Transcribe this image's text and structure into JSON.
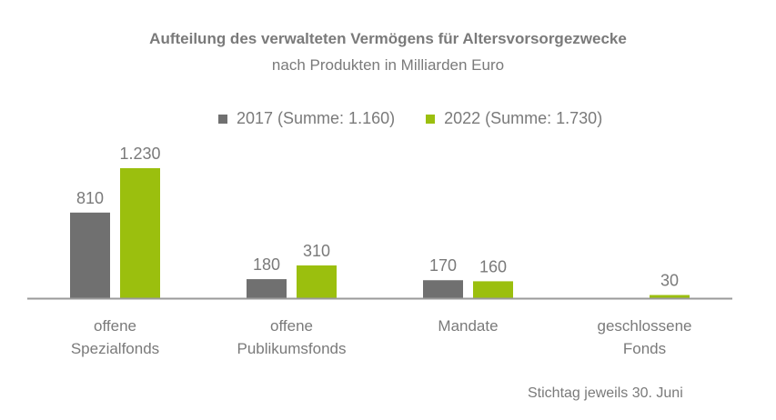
{
  "chart_data": {
    "type": "bar",
    "title": "Aufteilung des verwalteten Vermögens für Altersvorsorgezwecke",
    "subtitle": "nach Produkten in Milliarden Euro",
    "categories": [
      [
        "offene",
        "Spezialfonds"
      ],
      [
        "offene",
        "Publikumsfonds"
      ],
      [
        "Mandate"
      ],
      [
        "geschlossene",
        "Fonds"
      ]
    ],
    "series": [
      {
        "name": "2017 (Summe: 1.160)",
        "color": "#707070",
        "values": [
          810,
          180,
          170,
          null
        ],
        "labels": [
          "810",
          "180",
          "170",
          ""
        ]
      },
      {
        "name": "2022 (Summe: 1.730)",
        "color": "#9bbf0e",
        "values": [
          1230,
          310,
          160,
          30
        ],
        "labels": [
          "1.230",
          "310",
          "160",
          "30"
        ]
      }
    ],
    "xlabel": "",
    "ylabel": "",
    "ylim": [
      0,
      1230
    ],
    "grid": false,
    "legend_position": "top",
    "footnote": "Stichtag jeweils 30. Juni"
  }
}
